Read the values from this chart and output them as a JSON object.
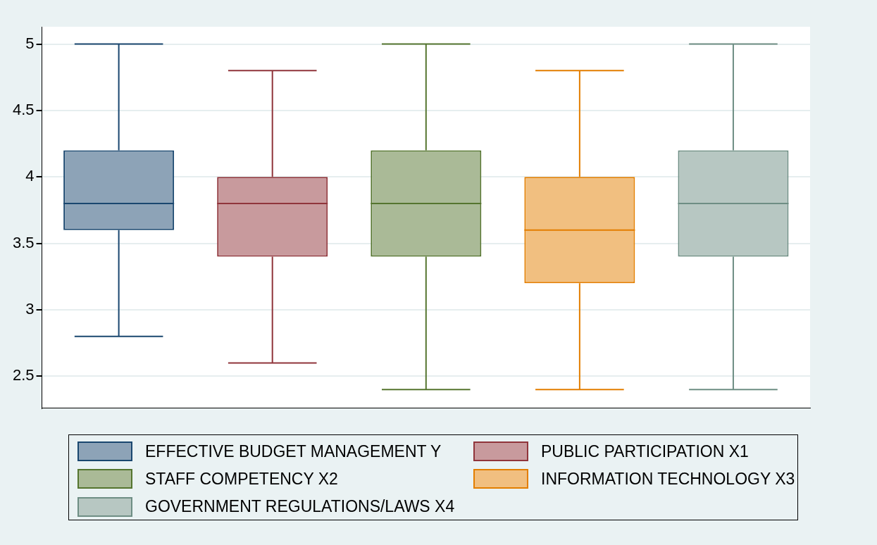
{
  "chart_data": {
    "type": "box",
    "categories": [
      null,
      null,
      null,
      null,
      null
    ],
    "ylim": [
      2.26,
      5.13
    ],
    "yticks": [
      2.5,
      3,
      3.5,
      4,
      4.5,
      5
    ],
    "grid": "y",
    "legend": "bottom",
    "series": [
      {
        "name": "EFFECTIVE BUDGET MANAGEMENT Y",
        "color": "#1a476f",
        "boxes": [
          {
            "low": 2.8,
            "q1": 3.6,
            "median": 3.8,
            "q3": 4.2,
            "high": 5
          },
          null,
          null,
          null,
          null
        ]
      },
      {
        "name": "PUBLIC PARTICIPATION X1",
        "color": "#90353b",
        "boxes": [
          null,
          {
            "low": 2.6,
            "q1": 3.4,
            "median": 3.8,
            "q3": 4,
            "high": 4.8
          },
          null,
          null,
          null
        ]
      },
      {
        "name": "STAFF COMPETENCY X2",
        "color": "#55752f",
        "boxes": [
          null,
          null,
          {
            "low": 2.4,
            "q1": 3.4,
            "median": 3.8,
            "q3": 4.2,
            "high": 5
          },
          null,
          null
        ]
      },
      {
        "name": "INFORMATION TECHNOLOGY X3",
        "color": "#e37e00",
        "boxes": [
          null,
          null,
          null,
          {
            "low": 2.4,
            "q1": 3.2,
            "median": 3.6,
            "q3": 4,
            "high": 4.8
          },
          null
        ]
      },
      {
        "name": "GOVERNMENT REGULATIONS/LAWS X4",
        "color": "#6e8e84",
        "boxes": [
          null,
          null,
          null,
          null,
          {
            "low": 2.4,
            "q1": 3.4,
            "median": 3.8,
            "q3": 4.2,
            "high": 5
          }
        ]
      }
    ]
  }
}
